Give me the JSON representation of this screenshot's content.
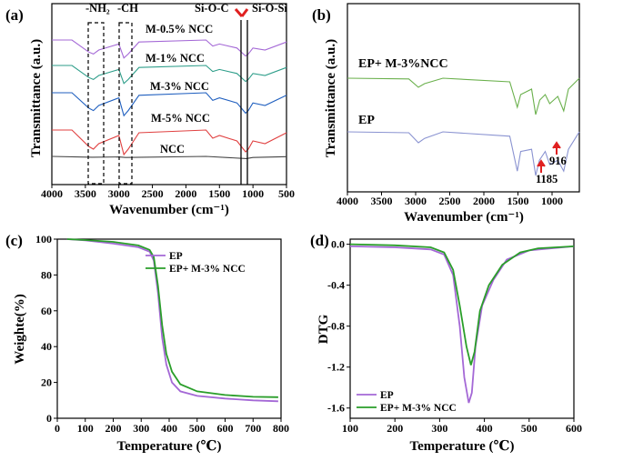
{
  "chart_data": [
    {
      "panel": "(a)",
      "type": "line",
      "xlabel": "Wavenumber (cm⁻¹)",
      "ylabel": "Transmittance (a.u.)",
      "xlim": [
        4000,
        500
      ],
      "x_ticks": [
        "4000",
        "3500",
        "3000",
        "2500",
        "2000",
        "1500",
        "1000",
        "500"
      ],
      "x_tick_values": [
        4000,
        3500,
        3000,
        2500,
        2000,
        1500,
        1000,
        500
      ],
      "annotations": [
        "-NH₂",
        "-CH",
        "Si-O-C",
        "Si-O-Si"
      ],
      "series": [
        {
          "name": "M-0.5% NCC",
          "color": "#a468d6",
          "offset": 5,
          "values": [
            [
              4000,
              1
            ],
            [
              3700,
              1
            ],
            [
              3450,
              0.4
            ],
            [
              3380,
              0.3
            ],
            [
              3300,
              0.5
            ],
            [
              3000,
              0.8
            ],
            [
              2925,
              0.1
            ],
            [
              2860,
              0.3
            ],
            [
              2700,
              0.9
            ],
            [
              1700,
              1
            ],
            [
              1600,
              0.7
            ],
            [
              1500,
              0.8
            ],
            [
              1240,
              0.6
            ],
            [
              1110,
              0.2
            ],
            [
              1070,
              0.3
            ],
            [
              1000,
              0.6
            ],
            [
              820,
              0.5
            ],
            [
              500,
              0.9
            ]
          ]
        },
        {
          "name": "M-1% NCC",
          "color": "#2e9e8a",
          "offset": 4,
          "values": [
            [
              4000,
              1
            ],
            [
              3700,
              1
            ],
            [
              3450,
              0.4
            ],
            [
              3380,
              0.3
            ],
            [
              3300,
              0.5
            ],
            [
              3000,
              0.8
            ],
            [
              2925,
              0.1
            ],
            [
              2860,
              0.3
            ],
            [
              2700,
              0.9
            ],
            [
              1700,
              1
            ],
            [
              1600,
              0.7
            ],
            [
              1500,
              0.8
            ],
            [
              1240,
              0.6
            ],
            [
              1110,
              0.2
            ],
            [
              1070,
              0.3
            ],
            [
              1000,
              0.6
            ],
            [
              820,
              0.5
            ],
            [
              500,
              0.9
            ]
          ]
        },
        {
          "name": "M-3% NCC",
          "color": "#1f5fbf",
          "offset": 3,
          "values": [
            [
              4000,
              1
            ],
            [
              3700,
              1
            ],
            [
              3450,
              0.4
            ],
            [
              3380,
              0.3
            ],
            [
              3300,
              0.5
            ],
            [
              3000,
              0.8
            ],
            [
              2925,
              0.1
            ],
            [
              2860,
              0.3
            ],
            [
              2700,
              0.9
            ],
            [
              1700,
              1
            ],
            [
              1600,
              0.7
            ],
            [
              1500,
              0.8
            ],
            [
              1240,
              0.6
            ],
            [
              1110,
              0.2
            ],
            [
              1070,
              0.3
            ],
            [
              1000,
              0.6
            ],
            [
              820,
              0.5
            ],
            [
              500,
              0.9
            ]
          ]
        },
        {
          "name": "M-5% NCC",
          "color": "#e04040",
          "offset": 2,
          "values": [
            [
              4000,
              1
            ],
            [
              3700,
              1
            ],
            [
              3450,
              0.4
            ],
            [
              3380,
              0.3
            ],
            [
              3300,
              0.5
            ],
            [
              3000,
              0.8
            ],
            [
              2925,
              0.1
            ],
            [
              2860,
              0.3
            ],
            [
              2700,
              0.9
            ],
            [
              1700,
              1
            ],
            [
              1600,
              0.7
            ],
            [
              1500,
              0.8
            ],
            [
              1240,
              0.6
            ],
            [
              1110,
              0.2
            ],
            [
              1070,
              0.3
            ],
            [
              1000,
              0.6
            ],
            [
              820,
              0.5
            ],
            [
              500,
              0.9
            ]
          ]
        },
        {
          "name": "NCC",
          "color": "#444444",
          "offset": 1,
          "values": [
            [
              4000,
              1
            ],
            [
              3400,
              0.85
            ],
            [
              3000,
              0.9
            ],
            [
              2900,
              0.8
            ],
            [
              1700,
              1
            ],
            [
              1100,
              0.6
            ],
            [
              1000,
              0.8
            ],
            [
              500,
              0.95
            ]
          ]
        }
      ]
    },
    {
      "panel": "(b)",
      "type": "line",
      "xlabel": "Wavenumber (cm⁻¹)",
      "ylabel": "Transmittance (a.u.)",
      "xlim": [
        4000,
        600
      ],
      "x_ticks": [
        "4000",
        "3500",
        "3000",
        "2500",
        "2000",
        "1500",
        "1000"
      ],
      "x_tick_values": [
        4000,
        3500,
        3000,
        2500,
        2000,
        1500,
        1000
      ],
      "annotations": [
        "1185",
        "916"
      ],
      "series": [
        {
          "name": "EP+ M-3%NCC",
          "color": "#6ab04c",
          "offset": 2,
          "values": [
            [
              4000,
              1
            ],
            [
              3100,
              0.98
            ],
            [
              2960,
              0.75
            ],
            [
              2870,
              0.85
            ],
            [
              2600,
              1
            ],
            [
              1620,
              0.9
            ],
            [
              1510,
              0.2
            ],
            [
              1460,
              0.55
            ],
            [
              1300,
              0.7
            ],
            [
              1240,
              0.0
            ],
            [
              1180,
              0.4
            ],
            [
              1100,
              0.55
            ],
            [
              1035,
              0.3
            ],
            [
              916,
              0.5
            ],
            [
              830,
              0.1
            ],
            [
              760,
              0.7
            ],
            [
              600,
              1
            ]
          ]
        },
        {
          "name": "EP",
          "color": "#8a93d1",
          "offset": 1,
          "values": [
            [
              4000,
              1
            ],
            [
              3100,
              0.98
            ],
            [
              2960,
              0.75
            ],
            [
              2870,
              0.85
            ],
            [
              2600,
              1
            ],
            [
              1620,
              0.9
            ],
            [
              1510,
              0.1
            ],
            [
              1460,
              0.55
            ],
            [
              1300,
              0.6
            ],
            [
              1240,
              0.0
            ],
            [
              1185,
              0.35
            ],
            [
              1100,
              0.55
            ],
            [
              1035,
              0.25
            ],
            [
              916,
              0.35
            ],
            [
              830,
              0.1
            ],
            [
              760,
              0.6
            ],
            [
              600,
              1
            ]
          ]
        }
      ]
    },
    {
      "panel": "(c)",
      "type": "line",
      "xlabel": "Temperature (℃)",
      "ylabel": "Weighte(%)",
      "xlim": [
        0,
        800
      ],
      "ylim": [
        0,
        100
      ],
      "x_ticks": [
        "0",
        "100",
        "200",
        "300",
        "400",
        "500",
        "600",
        "700",
        "800"
      ],
      "y_ticks": [
        "0",
        "20",
        "40",
        "60",
        "80",
        "100"
      ],
      "legend": "top-right",
      "series": [
        {
          "name": "EP",
          "color": "#a468d6",
          "values": [
            [
              35,
              100
            ],
            [
              100,
              99.3
            ],
            [
              200,
              97.5
            ],
            [
              290,
              95.5
            ],
            [
              330,
              93
            ],
            [
              345,
              88
            ],
            [
              360,
              70
            ],
            [
              375,
              45
            ],
            [
              390,
              30
            ],
            [
              410,
              20
            ],
            [
              440,
              15
            ],
            [
              500,
              12.5
            ],
            [
              600,
              11
            ],
            [
              700,
              10
            ],
            [
              790,
              9.5
            ]
          ]
        },
        {
          "name": "EP+ M-3% NCC",
          "color": "#2a9e2a",
          "values": [
            [
              35,
              100
            ],
            [
              100,
              99.5
            ],
            [
              200,
              98.5
            ],
            [
              290,
              96.5
            ],
            [
              330,
              94
            ],
            [
              345,
              90
            ],
            [
              360,
              74
            ],
            [
              375,
              52
            ],
            [
              390,
              36
            ],
            [
              410,
              26
            ],
            [
              440,
              19
            ],
            [
              500,
              15
            ],
            [
              600,
              13
            ],
            [
              700,
              12
            ],
            [
              790,
              11.8
            ]
          ]
        }
      ]
    },
    {
      "panel": "(d)",
      "type": "line",
      "xlabel": "Temperature (℃)",
      "ylabel": "DTG",
      "xlim": [
        100,
        600
      ],
      "ylim": [
        -1.7,
        0.05
      ],
      "x_ticks": [
        "100",
        "200",
        "300",
        "400",
        "500",
        "600"
      ],
      "y_ticks": [
        "0.0",
        "-0.4",
        "-0.8",
        "-1.2",
        "-1.6"
      ],
      "legend": "bottom-left",
      "series": [
        {
          "name": "EP",
          "color": "#a468d6",
          "values": [
            [
              100,
              -0.02
            ],
            [
              200,
              -0.03
            ],
            [
              280,
              -0.05
            ],
            [
              310,
              -0.1
            ],
            [
              330,
              -0.3
            ],
            [
              345,
              -0.8
            ],
            [
              355,
              -1.3
            ],
            [
              365,
              -1.55
            ],
            [
              372,
              -1.45
            ],
            [
              380,
              -1.0
            ],
            [
              395,
              -0.6
            ],
            [
              420,
              -0.35
            ],
            [
              450,
              -0.15
            ],
            [
              500,
              -0.06
            ],
            [
              600,
              -0.02
            ]
          ]
        },
        {
          "name": "EP+ M-3% NCC",
          "color": "#2a9e2a",
          "values": [
            [
              100,
              0.0
            ],
            [
              200,
              -0.01
            ],
            [
              280,
              -0.03
            ],
            [
              310,
              -0.08
            ],
            [
              330,
              -0.25
            ],
            [
              345,
              -0.6
            ],
            [
              360,
              -1.0
            ],
            [
              370,
              -1.18
            ],
            [
              378,
              -1.05
            ],
            [
              390,
              -0.65
            ],
            [
              410,
              -0.4
            ],
            [
              440,
              -0.2
            ],
            [
              480,
              -0.08
            ],
            [
              520,
              -0.04
            ],
            [
              600,
              -0.02
            ]
          ]
        }
      ]
    }
  ]
}
